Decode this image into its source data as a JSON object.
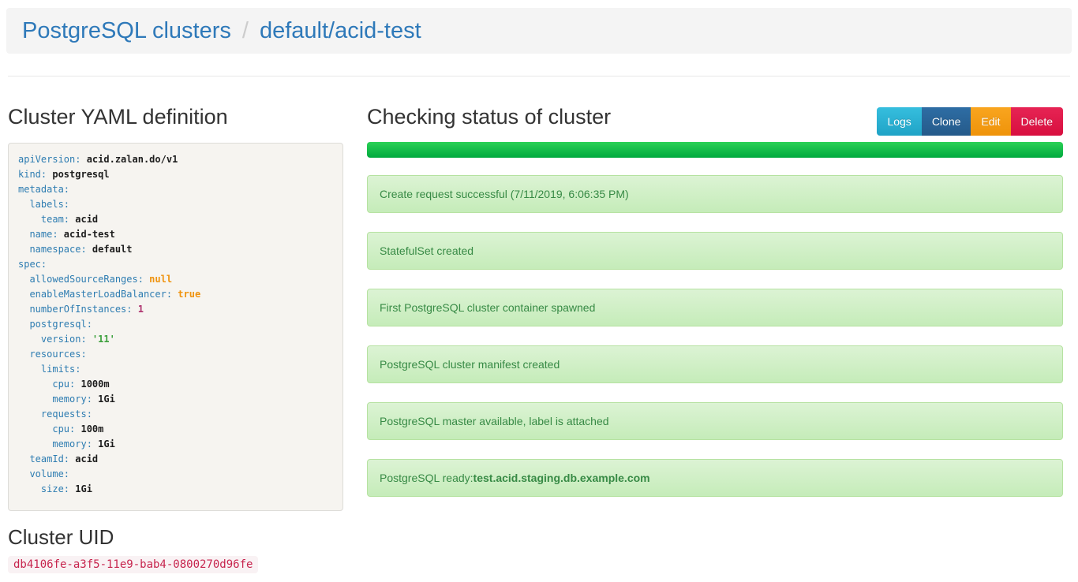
{
  "breadcrumb": {
    "root": "PostgreSQL clusters",
    "separator": "/",
    "current": "default/acid-test"
  },
  "left": {
    "yaml_heading": "Cluster YAML definition",
    "uid_heading": "Cluster UID",
    "uid_value": "db4106fe-a3f5-11e9-bab4-0800270d96fe",
    "yaml_lines": [
      {
        "indent": 0,
        "key": "apiVersion",
        "value": "acid.zalan.do/v1",
        "value_type": "plain"
      },
      {
        "indent": 0,
        "key": "kind",
        "value": "postgresql",
        "value_type": "plain"
      },
      {
        "indent": 0,
        "key": "metadata",
        "value": "",
        "value_type": "none"
      },
      {
        "indent": 1,
        "key": "labels",
        "value": "",
        "value_type": "none"
      },
      {
        "indent": 2,
        "key": "team",
        "value": "acid",
        "value_type": "plain"
      },
      {
        "indent": 1,
        "key": "name",
        "value": "acid-test",
        "value_type": "plain"
      },
      {
        "indent": 1,
        "key": "namespace",
        "value": "default",
        "value_type": "plain"
      },
      {
        "indent": 0,
        "key": "spec",
        "value": "",
        "value_type": "none"
      },
      {
        "indent": 1,
        "key": "allowedSourceRanges",
        "value": "null",
        "value_type": "literal"
      },
      {
        "indent": 1,
        "key": "enableMasterLoadBalancer",
        "value": "true",
        "value_type": "literal"
      },
      {
        "indent": 1,
        "key": "numberOfInstances",
        "value": "1",
        "value_type": "number"
      },
      {
        "indent": 1,
        "key": "postgresql",
        "value": "",
        "value_type": "none"
      },
      {
        "indent": 2,
        "key": "version",
        "value": "'11'",
        "value_type": "string"
      },
      {
        "indent": 1,
        "key": "resources",
        "value": "",
        "value_type": "none"
      },
      {
        "indent": 2,
        "key": "limits",
        "value": "",
        "value_type": "none"
      },
      {
        "indent": 3,
        "key": "cpu",
        "value": "1000m",
        "value_type": "plain"
      },
      {
        "indent": 3,
        "key": "memory",
        "value": "1Gi",
        "value_type": "plain"
      },
      {
        "indent": 2,
        "key": "requests",
        "value": "",
        "value_type": "none"
      },
      {
        "indent": 3,
        "key": "cpu",
        "value": "100m",
        "value_type": "plain"
      },
      {
        "indent": 3,
        "key": "memory",
        "value": "1Gi",
        "value_type": "plain"
      },
      {
        "indent": 1,
        "key": "teamId",
        "value": "acid",
        "value_type": "plain"
      },
      {
        "indent": 1,
        "key": "volume",
        "value": "",
        "value_type": "none"
      },
      {
        "indent": 2,
        "key": "size",
        "value": "1Gi",
        "value_type": "plain"
      }
    ]
  },
  "right": {
    "status_heading": "Checking status of cluster",
    "buttons": [
      {
        "label": "Logs",
        "color_top": "#36bede",
        "color_bottom": "#1fa3c6"
      },
      {
        "label": "Clone",
        "color_top": "#2e6da4",
        "color_bottom": "#255a8a"
      },
      {
        "label": "Edit",
        "color_top": "#f9a51f",
        "color_bottom": "#ef930a"
      },
      {
        "label": "Delete",
        "color_top": "#e62454",
        "color_bottom": "#d80f3f"
      }
    ],
    "progress": {
      "percent": 100
    },
    "status_messages": [
      {
        "text": "Create request successful (7/11/2019, 6:06:35 PM)"
      },
      {
        "text": "StatefulSet created"
      },
      {
        "text": "First PostgreSQL cluster container spawned"
      },
      {
        "text": "PostgreSQL cluster manifest created"
      },
      {
        "text": "PostgreSQL master available, label is attached"
      },
      {
        "text": "PostgreSQL ready: ",
        "bold": "test.acid.staging.db.example.com"
      }
    ]
  },
  "colors": {
    "link_blue": "#2e79b9",
    "breadcrumb_bg": "#f4f4f4",
    "progress_green_top": "#2bd156",
    "progress_green_bottom": "#00a93e",
    "status_bg_top": "#dcf3d4",
    "status_bg_bottom": "#c5ecb9",
    "status_border": "#b6e2a1",
    "status_text_green": "#378a45",
    "uid_text": "#c7254e",
    "uid_bg": "#f9f2f4",
    "yaml_key_blue": "#2d7cb1",
    "yaml_literal_orange": "#ef930f",
    "yaml_number_magenta": "#ae326e",
    "yaml_string_green": "#3ca03c"
  }
}
